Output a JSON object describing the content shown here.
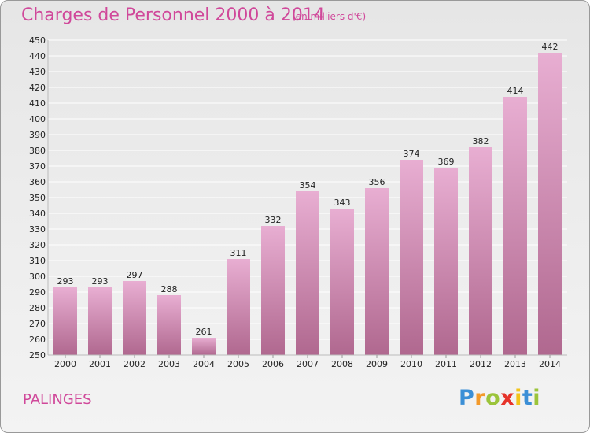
{
  "header": {
    "title": "Charges de Personnel 2000 à 2014",
    "subtitle": "(en milliers d'€)"
  },
  "footer": {
    "commune": "PALINGES",
    "logo": {
      "letters": [
        "P",
        "r",
        "o",
        "x",
        "i",
        "t",
        "i"
      ],
      "colors": [
        "#3b8fd6",
        "#f39a2b",
        "#9bc43a",
        "#e6332a",
        "#f3c419",
        "#3b8fd6",
        "#9bc43a"
      ]
    }
  },
  "colors": {
    "accent": "#d0489a",
    "bar_top": "#e8aed2",
    "bar_bottom": "#b0688f",
    "grid": "#ffffff",
    "axis_text": "#222222"
  },
  "chart_data": {
    "type": "bar",
    "categories": [
      "2000",
      "2001",
      "2002",
      "2003",
      "2004",
      "2005",
      "2006",
      "2007",
      "2008",
      "2009",
      "2010",
      "2011",
      "2012",
      "2013",
      "2014"
    ],
    "values": [
      293,
      293,
      297,
      288,
      261,
      311,
      332,
      354,
      343,
      356,
      374,
      369,
      382,
      414,
      442
    ],
    "title": "Charges de Personnel 2000 à 2014",
    "ylim": [
      250,
      450
    ],
    "ytick_step": 10,
    "grid": true,
    "data_labels": true
  }
}
